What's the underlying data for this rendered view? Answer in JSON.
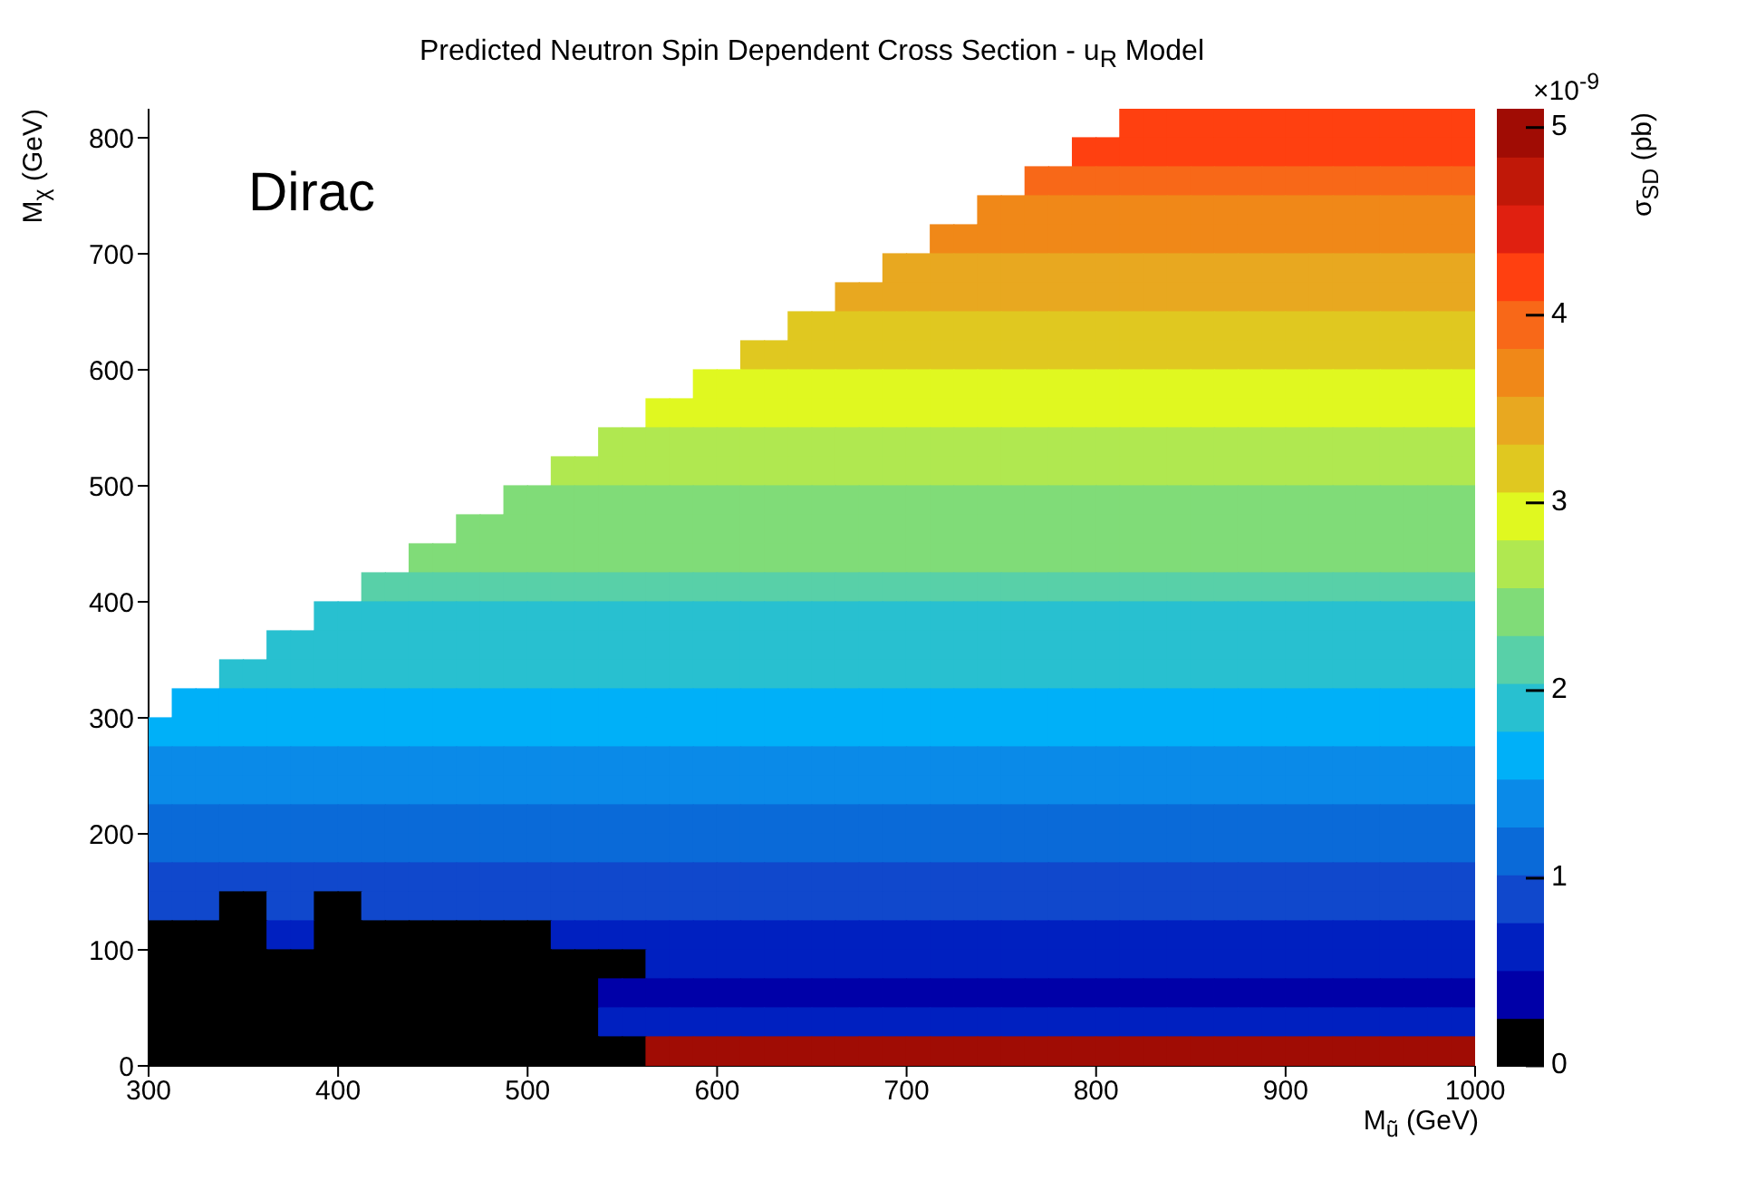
{
  "chart_data": {
    "type": "heatmap",
    "title": "Predicted Neutron Spin Dependent Cross Section - u$_{R}$ Model",
    "xlabel": "M$_{ũ}$ (GeV)",
    "ylabel": "M$_{χ}$ (GeV)",
    "clabel": "σ$_{SD}$ (pb)",
    "annotations": [
      "Dirac",
      "×10$^{-9}$"
    ],
    "xlim": [
      300,
      1000
    ],
    "xticks": [
      300,
      400,
      500,
      600,
      700,
      800,
      900,
      1000
    ],
    "ylim": [
      0,
      825
    ],
    "yticks": [
      0,
      100,
      200,
      300,
      400,
      500,
      600,
      700,
      800
    ],
    "clim": [
      0,
      5.1
    ],
    "cticks": [
      0,
      1,
      2,
      3,
      4,
      5
    ],
    "cells": [
      [
        null,
        null,
        null,
        null,
        null,
        null,
        null,
        null,
        null,
        null,
        null,
        null,
        null,
        null,
        null,
        null,
        null,
        null,
        null,
        null,
        null,
        null,
        null,
        null,
        null,
        null,
        null,
        null,
        null,
        null,
        null,
        null,
        null,
        null,
        null,
        null,
        null,
        null,
        null,
        null,
        null,
        4.1,
        4.1,
        4.1,
        4.1,
        4.1,
        4.1,
        4.1,
        4.1,
        4.1,
        4.1,
        4.1,
        4.1,
        4.1,
        4.1,
        4.1
      ],
      [
        null,
        null,
        null,
        null,
        null,
        null,
        null,
        null,
        null,
        null,
        null,
        null,
        null,
        null,
        null,
        null,
        null,
        null,
        null,
        null,
        null,
        null,
        null,
        null,
        null,
        null,
        null,
        null,
        null,
        null,
        null,
        null,
        null,
        null,
        null,
        null,
        null,
        null,
        null,
        4.1,
        4.1,
        4.1,
        4.1,
        4.1,
        4.1,
        4.1,
        4.1,
        4.1,
        4.1,
        4.1,
        4.1,
        4.1,
        4.1,
        4.1,
        4.1,
        4.1
      ],
      [
        null,
        null,
        null,
        null,
        null,
        null,
        null,
        null,
        null,
        null,
        null,
        null,
        null,
        null,
        null,
        null,
        null,
        null,
        null,
        null,
        null,
        null,
        null,
        null,
        null,
        null,
        null,
        null,
        null,
        null,
        null,
        null,
        null,
        null,
        null,
        null,
        null,
        3.9,
        3.9,
        3.9,
        3.9,
        3.9,
        3.9,
        3.9,
        3.9,
        3.9,
        3.9,
        3.9,
        3.9,
        3.9,
        3.9,
        3.9,
        3.9,
        3.9,
        3.9,
        3.9
      ],
      [
        null,
        null,
        null,
        null,
        null,
        null,
        null,
        null,
        null,
        null,
        null,
        null,
        null,
        null,
        null,
        null,
        null,
        null,
        null,
        null,
        null,
        null,
        null,
        null,
        null,
        null,
        null,
        null,
        null,
        null,
        null,
        null,
        null,
        null,
        null,
        3.6,
        3.6,
        3.6,
        3.6,
        3.6,
        3.6,
        3.6,
        3.6,
        3.6,
        3.6,
        3.6,
        3.6,
        3.6,
        3.6,
        3.6,
        3.6,
        3.6,
        3.6,
        3.6,
        3.6,
        3.6
      ],
      [
        null,
        null,
        null,
        null,
        null,
        null,
        null,
        null,
        null,
        null,
        null,
        null,
        null,
        null,
        null,
        null,
        null,
        null,
        null,
        null,
        null,
        null,
        null,
        null,
        null,
        null,
        null,
        null,
        null,
        null,
        null,
        null,
        null,
        3.6,
        3.6,
        3.6,
        3.6,
        3.6,
        3.6,
        3.6,
        3.6,
        3.6,
        3.6,
        3.6,
        3.6,
        3.6,
        3.6,
        3.6,
        3.6,
        3.6,
        3.6,
        3.6,
        3.6,
        3.6,
        3.6,
        3.6
      ],
      [
        null,
        null,
        null,
        null,
        null,
        null,
        null,
        null,
        null,
        null,
        null,
        null,
        null,
        null,
        null,
        null,
        null,
        null,
        null,
        null,
        null,
        null,
        null,
        null,
        null,
        null,
        null,
        null,
        null,
        null,
        null,
        3.4,
        3.4,
        3.4,
        3.4,
        3.4,
        3.4,
        3.4,
        3.4,
        3.4,
        3.4,
        3.4,
        3.4,
        3.4,
        3.4,
        3.4,
        3.4,
        3.4,
        3.4,
        3.4,
        3.4,
        3.4,
        3.4,
        3.4,
        3.4,
        3.4
      ],
      [
        null,
        null,
        null,
        null,
        null,
        null,
        null,
        null,
        null,
        null,
        null,
        null,
        null,
        null,
        null,
        null,
        null,
        null,
        null,
        null,
        null,
        null,
        null,
        null,
        null,
        null,
        null,
        null,
        null,
        3.4,
        3.4,
        3.4,
        3.4,
        3.4,
        3.4,
        3.4,
        3.4,
        3.4,
        3.4,
        3.4,
        3.4,
        3.4,
        3.4,
        3.4,
        3.4,
        3.4,
        3.4,
        3.4,
        3.4,
        3.4,
        3.4,
        3.4,
        3.4,
        3.4,
        3.4,
        3.4
      ],
      [
        null,
        null,
        null,
        null,
        null,
        null,
        null,
        null,
        null,
        null,
        null,
        null,
        null,
        null,
        null,
        null,
        null,
        null,
        null,
        null,
        null,
        null,
        null,
        null,
        null,
        null,
        null,
        3.1,
        3.1,
        3.1,
        3.1,
        3.1,
        3.1,
        3.1,
        3.1,
        3.1,
        3.1,
        3.1,
        3.1,
        3.1,
        3.1,
        3.1,
        3.1,
        3.1,
        3.1,
        3.1,
        3.1,
        3.1,
        3.1,
        3.1,
        3.1,
        3.1,
        3.1,
        3.1,
        3.1,
        3.1
      ],
      [
        null,
        null,
        null,
        null,
        null,
        null,
        null,
        null,
        null,
        null,
        null,
        null,
        null,
        null,
        null,
        null,
        null,
        null,
        null,
        null,
        null,
        null,
        null,
        null,
        null,
        3.1,
        3.1,
        3.1,
        3.1,
        3.1,
        3.1,
        3.1,
        3.1,
        3.1,
        3.1,
        3.1,
        3.1,
        3.1,
        3.1,
        3.1,
        3.1,
        3.1,
        3.1,
        3.1,
        3.1,
        3.1,
        3.1,
        3.1,
        3.1,
        3.1,
        3.1,
        3.1,
        3.1,
        3.1,
        3.1,
        3.1
      ],
      [
        null,
        null,
        null,
        null,
        null,
        null,
        null,
        null,
        null,
        null,
        null,
        null,
        null,
        null,
        null,
        null,
        null,
        null,
        null,
        null,
        null,
        null,
        null,
        2.9,
        2.9,
        2.9,
        2.9,
        2.9,
        2.9,
        2.9,
        2.9,
        2.9,
        2.9,
        2.9,
        2.9,
        2.9,
        2.9,
        2.9,
        2.9,
        2.9,
        2.9,
        2.9,
        2.9,
        2.9,
        2.9,
        2.9,
        2.9,
        2.9,
        2.9,
        2.9,
        2.9,
        2.9,
        2.9,
        2.9,
        2.9,
        2.9
      ],
      [
        null,
        null,
        null,
        null,
        null,
        null,
        null,
        null,
        null,
        null,
        null,
        null,
        null,
        null,
        null,
        null,
        null,
        null,
        null,
        null,
        null,
        2.9,
        2.9,
        2.9,
        2.9,
        2.9,
        2.9,
        2.9,
        2.9,
        2.9,
        2.9,
        2.9,
        2.9,
        2.9,
        2.9,
        2.9,
        2.9,
        2.9,
        2.9,
        2.9,
        2.9,
        2.9,
        2.9,
        2.9,
        2.9,
        2.9,
        2.9,
        2.9,
        2.9,
        2.9,
        2.9,
        2.9,
        2.9,
        2.9,
        2.9,
        2.9
      ],
      [
        null,
        null,
        null,
        null,
        null,
        null,
        null,
        null,
        null,
        null,
        null,
        null,
        null,
        null,
        null,
        null,
        null,
        null,
        null,
        2.6,
        2.6,
        2.6,
        2.6,
        2.6,
        2.6,
        2.6,
        2.6,
        2.6,
        2.6,
        2.6,
        2.6,
        2.6,
        2.6,
        2.6,
        2.6,
        2.6,
        2.6,
        2.6,
        2.6,
        2.6,
        2.6,
        2.6,
        2.6,
        2.6,
        2.6,
        2.6,
        2.6,
        2.6,
        2.6,
        2.6,
        2.6,
        2.6,
        2.6,
        2.6,
        2.6,
        2.6
      ],
      [
        null,
        null,
        null,
        null,
        null,
        null,
        null,
        null,
        null,
        null,
        null,
        null,
        null,
        null,
        null,
        null,
        null,
        2.6,
        2.6,
        2.6,
        2.6,
        2.6,
        2.6,
        2.6,
        2.6,
        2.6,
        2.6,
        2.6,
        2.6,
        2.6,
        2.6,
        2.6,
        2.6,
        2.6,
        2.6,
        2.6,
        2.6,
        2.6,
        2.6,
        2.6,
        2.6,
        2.6,
        2.6,
        2.6,
        2.6,
        2.6,
        2.6,
        2.6,
        2.6,
        2.6,
        2.6,
        2.6,
        2.6,
        2.6,
        2.6,
        2.6
      ],
      [
        null,
        null,
        null,
        null,
        null,
        null,
        null,
        null,
        null,
        null,
        null,
        null,
        null,
        null,
        null,
        2.4,
        2.4,
        2.4,
        2.4,
        2.4,
        2.4,
        2.4,
        2.4,
        2.4,
        2.4,
        2.4,
        2.4,
        2.4,
        2.4,
        2.4,
        2.4,
        2.4,
        2.4,
        2.4,
        2.4,
        2.4,
        2.4,
        2.4,
        2.4,
        2.4,
        2.4,
        2.4,
        2.4,
        2.4,
        2.4,
        2.4,
        2.4,
        2.4,
        2.4,
        2.4,
        2.4,
        2.4,
        2.4,
        2.4,
        2.4,
        2.4
      ],
      [
        null,
        null,
        null,
        null,
        null,
        null,
        null,
        null,
        null,
        null,
        null,
        null,
        null,
        2.4,
        2.4,
        2.4,
        2.4,
        2.4,
        2.4,
        2.4,
        2.4,
        2.4,
        2.4,
        2.4,
        2.4,
        2.4,
        2.4,
        2.4,
        2.4,
        2.4,
        2.4,
        2.4,
        2.4,
        2.4,
        2.4,
        2.4,
        2.4,
        2.4,
        2.4,
        2.4,
        2.4,
        2.4,
        2.4,
        2.4,
        2.4,
        2.4,
        2.4,
        2.4,
        2.4,
        2.4,
        2.4,
        2.4,
        2.4,
        2.4,
        2.4,
        2.4
      ],
      [
        null,
        null,
        null,
        null,
        null,
        null,
        null,
        null,
        null,
        null,
        null,
        2.4,
        2.4,
        2.4,
        2.4,
        2.4,
        2.4,
        2.4,
        2.4,
        2.4,
        2.4,
        2.4,
        2.4,
        2.4,
        2.4,
        2.4,
        2.4,
        2.4,
        2.4,
        2.4,
        2.4,
        2.4,
        2.4,
        2.4,
        2.4,
        2.4,
        2.4,
        2.4,
        2.4,
        2.4,
        2.4,
        2.4,
        2.4,
        2.4,
        2.4,
        2.4,
        2.4,
        2.4,
        2.4,
        2.4,
        2.4,
        2.4,
        2.4,
        2.4,
        2.4,
        2.4
      ],
      [
        null,
        null,
        null,
        null,
        null,
        null,
        null,
        null,
        null,
        2.1,
        2.1,
        2.1,
        2.1,
        2.1,
        2.1,
        2.1,
        2.1,
        2.1,
        2.1,
        2.1,
        2.1,
        2.1,
        2.1,
        2.1,
        2.1,
        2.1,
        2.1,
        2.1,
        2.1,
        2.1,
        2.1,
        2.1,
        2.1,
        2.1,
        2.1,
        2.1,
        2.1,
        2.1,
        2.1,
        2.1,
        2.1,
        2.1,
        2.1,
        2.1,
        2.1,
        2.1,
        2.1,
        2.1,
        2.1,
        2.1,
        2.1,
        2.1,
        2.1,
        2.1,
        2.1,
        2.1
      ],
      [
        null,
        null,
        null,
        null,
        null,
        null,
        null,
        1.9,
        1.9,
        1.9,
        1.9,
        1.9,
        1.9,
        1.9,
        1.9,
        1.9,
        1.9,
        1.9,
        1.9,
        1.9,
        1.9,
        1.9,
        1.9,
        1.9,
        1.9,
        1.9,
        1.9,
        1.9,
        1.9,
        1.9,
        1.9,
        1.9,
        1.9,
        1.9,
        1.9,
        1.9,
        1.9,
        1.9,
        1.9,
        1.9,
        1.9,
        1.9,
        1.9,
        1.9,
        1.9,
        1.9,
        1.9,
        1.9,
        1.9,
        1.9,
        1.9,
        1.9,
        1.9,
        1.9,
        1.9,
        1.9
      ],
      [
        null,
        null,
        null,
        null,
        null,
        1.9,
        1.9,
        1.9,
        1.9,
        1.9,
        1.9,
        1.9,
        1.9,
        1.9,
        1.9,
        1.9,
        1.9,
        1.9,
        1.9,
        1.9,
        1.9,
        1.9,
        1.9,
        1.9,
        1.9,
        1.9,
        1.9,
        1.9,
        1.9,
        1.9,
        1.9,
        1.9,
        1.9,
        1.9,
        1.9,
        1.9,
        1.9,
        1.9,
        1.9,
        1.9,
        1.9,
        1.9,
        1.9,
        1.9,
        1.9,
        1.9,
        1.9,
        1.9,
        1.9,
        1.9,
        1.9,
        1.9,
        1.9,
        1.9,
        1.9,
        1.9
      ],
      [
        null,
        null,
        null,
        1.9,
        1.9,
        1.9,
        1.9,
        1.9,
        1.9,
        1.9,
        1.9,
        1.9,
        1.9,
        1.9,
        1.9,
        1.9,
        1.9,
        1.9,
        1.9,
        1.9,
        1.9,
        1.9,
        1.9,
        1.9,
        1.9,
        1.9,
        1.9,
        1.9,
        1.9,
        1.9,
        1.9,
        1.9,
        1.9,
        1.9,
        1.9,
        1.9,
        1.9,
        1.9,
        1.9,
        1.9,
        1.9,
        1.9,
        1.9,
        1.9,
        1.9,
        1.9,
        1.9,
        1.9,
        1.9,
        1.9,
        1.9,
        1.9,
        1.9,
        1.9,
        1.9,
        1.9
      ],
      [
        null,
        1.6,
        1.6,
        1.6,
        1.6,
        1.6,
        1.6,
        1.6,
        1.6,
        1.6,
        1.6,
        1.6,
        1.6,
        1.6,
        1.6,
        1.6,
        1.6,
        1.6,
        1.6,
        1.6,
        1.6,
        1.6,
        1.6,
        1.6,
        1.6,
        1.6,
        1.6,
        1.6,
        1.6,
        1.6,
        1.6,
        1.6,
        1.6,
        1.6,
        1.6,
        1.6,
        1.6,
        1.6,
        1.6,
        1.6,
        1.6,
        1.6,
        1.6,
        1.6,
        1.6,
        1.6,
        1.6,
        1.6,
        1.6,
        1.6,
        1.6,
        1.6,
        1.6,
        1.6,
        1.6,
        1.6
      ],
      [
        1.6,
        1.6,
        1.6,
        1.6,
        1.6,
        1.6,
        1.6,
        1.6,
        1.6,
        1.6,
        1.6,
        1.6,
        1.6,
        1.6,
        1.6,
        1.6,
        1.6,
        1.6,
        1.6,
        1.6,
        1.6,
        1.6,
        1.6,
        1.6,
        1.6,
        1.6,
        1.6,
        1.6,
        1.6,
        1.6,
        1.6,
        1.6,
        1.6,
        1.6,
        1.6,
        1.6,
        1.6,
        1.6,
        1.6,
        1.6,
        1.6,
        1.6,
        1.6,
        1.6,
        1.6,
        1.6,
        1.6,
        1.6,
        1.6,
        1.6,
        1.6,
        1.6,
        1.6,
        1.6,
        1.6,
        1.6
      ],
      [
        1.4,
        1.4,
        1.4,
        1.4,
        1.4,
        1.4,
        1.4,
        1.4,
        1.4,
        1.4,
        1.4,
        1.4,
        1.4,
        1.4,
        1.4,
        1.4,
        1.4,
        1.4,
        1.4,
        1.4,
        1.4,
        1.4,
        1.4,
        1.4,
        1.4,
        1.4,
        1.4,
        1.4,
        1.4,
        1.4,
        1.4,
        1.4,
        1.4,
        1.4,
        1.4,
        1.4,
        1.4,
        1.4,
        1.4,
        1.4,
        1.4,
        1.4,
        1.4,
        1.4,
        1.4,
        1.4,
        1.4,
        1.4,
        1.4,
        1.4,
        1.4,
        1.4,
        1.4,
        1.4,
        1.4,
        1.4
      ],
      [
        1.4,
        1.4,
        1.4,
        1.4,
        1.4,
        1.4,
        1.4,
        1.4,
        1.4,
        1.4,
        1.4,
        1.4,
        1.4,
        1.4,
        1.4,
        1.4,
        1.4,
        1.4,
        1.4,
        1.4,
        1.4,
        1.4,
        1.4,
        1.4,
        1.4,
        1.4,
        1.4,
        1.4,
        1.4,
        1.4,
        1.4,
        1.4,
        1.4,
        1.4,
        1.4,
        1.4,
        1.4,
        1.4,
        1.4,
        1.4,
        1.4,
        1.4,
        1.4,
        1.4,
        1.4,
        1.4,
        1.4,
        1.4,
        1.4,
        1.4,
        1.4,
        1.4,
        1.4,
        1.4,
        1.4,
        1.4
      ],
      [
        1.1,
        1.1,
        1.1,
        1.1,
        1.1,
        1.1,
        1.1,
        1.1,
        1.1,
        1.1,
        1.1,
        1.1,
        1.1,
        1.1,
        1.1,
        1.1,
        1.1,
        1.1,
        1.1,
        1.1,
        1.1,
        1.1,
        1.1,
        1.1,
        1.1,
        1.1,
        1.1,
        1.1,
        1.1,
        1.1,
        1.1,
        1.1,
        1.1,
        1.1,
        1.1,
        1.1,
        1.1,
        1.1,
        1.1,
        1.1,
        1.1,
        1.1,
        1.1,
        1.1,
        1.1,
        1.1,
        1.1,
        1.1,
        1.1,
        1.1,
        1.1,
        1.1,
        1.1,
        1.1,
        1.1,
        1.1
      ],
      [
        1.1,
        1.1,
        1.1,
        1.1,
        1.1,
        1.1,
        1.1,
        1.1,
        1.1,
        1.1,
        1.1,
        1.1,
        1.1,
        1.1,
        1.1,
        1.1,
        1.1,
        1.1,
        1.1,
        1.1,
        1.1,
        1.1,
        1.1,
        1.1,
        1.1,
        1.1,
        1.1,
        1.1,
        1.1,
        1.1,
        1.1,
        1.1,
        1.1,
        1.1,
        1.1,
        1.1,
        1.1,
        1.1,
        1.1,
        1.1,
        1.1,
        1.1,
        1.1,
        1.1,
        1.1,
        1.1,
        1.1,
        1.1,
        1.1,
        1.1,
        1.1,
        1.1,
        1.1,
        1.1,
        1.1,
        1.1
      ],
      [
        0.9,
        0.9,
        0.9,
        0.9,
        0.9,
        0.9,
        0.9,
        0.9,
        0.9,
        0.9,
        0.9,
        0.9,
        0.9,
        0.9,
        0.9,
        0.9,
        0.9,
        0.9,
        0.9,
        0.9,
        0.9,
        0.9,
        0.9,
        0.9,
        0.9,
        0.9,
        0.9,
        0.9,
        0.9,
        0.9,
        0.9,
        0.9,
        0.9,
        0.9,
        0.9,
        0.9,
        0.9,
        0.9,
        0.9,
        0.9,
        0.9,
        0.9,
        0.9,
        0.9,
        0.9,
        0.9,
        0.9,
        0.9,
        0.9,
        0.9,
        0.9,
        0.9,
        0.9,
        0.9,
        0.9,
        0.9
      ],
      [
        0.9,
        0.9,
        0.9,
        0,
        0,
        0.9,
        0.9,
        0,
        0,
        0.9,
        0.9,
        0.9,
        0.9,
        0.9,
        0.9,
        0.9,
        0.9,
        0.9,
        0.9,
        0.9,
        0.9,
        0.9,
        0.9,
        0.9,
        0.9,
        0.9,
        0.9,
        0.9,
        0.9,
        0.9,
        0.9,
        0.9,
        0.9,
        0.9,
        0.9,
        0.9,
        0.9,
        0.9,
        0.9,
        0.9,
        0.9,
        0.9,
        0.9,
        0.9,
        0.9,
        0.9,
        0.9,
        0.9,
        0.9,
        0.9,
        0.9,
        0.9,
        0.9,
        0.9,
        0.9,
        0.9
      ],
      [
        0,
        0,
        0,
        0,
        0,
        0.6,
        0.6,
        0,
        0,
        0,
        0,
        0,
        0,
        0,
        0,
        0,
        0,
        0.6,
        0.6,
        0.6,
        0.6,
        0.6,
        0.6,
        0.6,
        0.6,
        0.6,
        0.6,
        0.6,
        0.6,
        0.6,
        0.6,
        0.6,
        0.6,
        0.6,
        0.6,
        0.6,
        0.6,
        0.6,
        0.6,
        0.6,
        0.6,
        0.6,
        0.6,
        0.6,
        0.6,
        0.6,
        0.6,
        0.6,
        0.6,
        0.6,
        0.6,
        0.6,
        0.6,
        0.6,
        0.6,
        0.6
      ],
      [
        0,
        0,
        0,
        0,
        0,
        0,
        0,
        0,
        0,
        0,
        0,
        0,
        0,
        0,
        0,
        0,
        0,
        0,
        0,
        0,
        0,
        0.6,
        0.6,
        0.6,
        0.6,
        0.6,
        0.6,
        0.6,
        0.6,
        0.6,
        0.6,
        0.6,
        0.6,
        0.6,
        0.6,
        0.6,
        0.6,
        0.6,
        0.6,
        0.6,
        0.6,
        0.6,
        0.6,
        0.6,
        0.6,
        0.6,
        0.6,
        0.6,
        0.6,
        0.6,
        0.6,
        0.6,
        0.6,
        0.6,
        0.6,
        0.6
      ],
      [
        0,
        0,
        0,
        0,
        0,
        0,
        0,
        0,
        0,
        0,
        0,
        0,
        0,
        0,
        0,
        0,
        0,
        0,
        0,
        0.4,
        0.4,
        0.4,
        0.4,
        0.4,
        0.4,
        0.4,
        0.4,
        0.4,
        0.4,
        0.4,
        0.4,
        0.4,
        0.4,
        0.4,
        0.4,
        0.4,
        0.4,
        0.4,
        0.4,
        0.4,
        0.4,
        0.4,
        0.4,
        0.4,
        0.4,
        0.4,
        0.4,
        0.4,
        0.4,
        0.4,
        0.4,
        0.4,
        0.4,
        0.4,
        0.4,
        0.4
      ],
      [
        0,
        0,
        0,
        0,
        0,
        0,
        0,
        0,
        0,
        0,
        0,
        0,
        0,
        0,
        0,
        0,
        0,
        0,
        0,
        0.6,
        0.6,
        0.6,
        0.6,
        0.6,
        0.6,
        0.6,
        0.6,
        0.6,
        0.6,
        0.6,
        0.6,
        0.6,
        0.6,
        0.6,
        0.6,
        0.6,
        0.6,
        0.6,
        0.6,
        0.6,
        0.6,
        0.6,
        0.6,
        0.6,
        0.6,
        0.6,
        0.6,
        0.6,
        0.6,
        0.6,
        0.6,
        0.6,
        0.6,
        0.6,
        0.6,
        0.6
      ],
      [
        0,
        0,
        0,
        0,
        0,
        0,
        0,
        0,
        0,
        0,
        0,
        0,
        0,
        0,
        0,
        0,
        0,
        0,
        0,
        0,
        0,
        5,
        5,
        5,
        5,
        5,
        5,
        5,
        5,
        5,
        5,
        5,
        5,
        5,
        5,
        5,
        5,
        5,
        5,
        5,
        5,
        5,
        5,
        5,
        5,
        5,
        5,
        5,
        5,
        5,
        5,
        5,
        5,
        5,
        5,
        5
      ]
    ]
  }
}
